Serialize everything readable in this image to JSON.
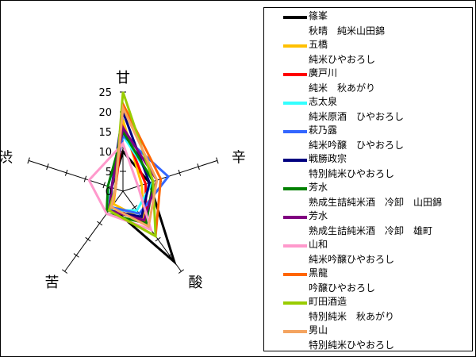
{
  "chart_data": {
    "type": "radar",
    "axes": [
      "甘",
      "辛",
      "酸",
      "苦",
      "渋"
    ],
    "tick_labels": [
      "0",
      "5",
      "10",
      "15",
      "20",
      "25"
    ],
    "rmax": 25,
    "grid": false,
    "legend_position": "right",
    "series": [
      {
        "name": "篠峯",
        "subtitle": "秋晴　純米山田錦",
        "color": "#000000",
        "values": [
          10,
          7,
          22,
          5,
          3
        ]
      },
      {
        "name": "五橋",
        "subtitle": "純米ひやおろし",
        "color": "#FFC000",
        "values": [
          18,
          5,
          9,
          4,
          2
        ]
      },
      {
        "name": "廣戸川",
        "subtitle": "純米　秋あがり",
        "color": "#FF0000",
        "values": [
          16,
          6,
          10,
          5,
          2
        ]
      },
      {
        "name": "志太泉",
        "subtitle": "純米原酒　ひやおろし",
        "color": "#33FFFF",
        "values": [
          14,
          8,
          6,
          6,
          4
        ]
      },
      {
        "name": "萩乃露",
        "subtitle": "純米吟醸　ひやおろし",
        "color": "#3366FF",
        "values": [
          14,
          12,
          7,
          5,
          3
        ]
      },
      {
        "name": "戦勝政宗",
        "subtitle": "特別純米ひやおろし",
        "color": "#000080",
        "values": [
          20,
          7,
          8,
          6,
          3
        ]
      },
      {
        "name": "芳水",
        "subtitle": "熟成生詰純米酒　冷卸　山田錦",
        "color": "#008000",
        "values": [
          15,
          8,
          10,
          7,
          4
        ]
      },
      {
        "name": "芳水",
        "subtitle": "熟成生詰純米酒　冷卸　雄町",
        "color": "#800080",
        "values": [
          16,
          9,
          9,
          6,
          3
        ]
      },
      {
        "name": "山和",
        "subtitle": "純米吟醸ひやおろし",
        "color": "#FF99CC",
        "values": [
          12,
          4,
          12,
          7,
          9
        ]
      },
      {
        "name": "黒龍",
        "subtitle": "吟醸ひやおろし",
        "color": "#FF6600",
        "values": [
          22,
          10,
          14,
          6,
          2
        ]
      },
      {
        "name": "町田酒造",
        "subtitle": "特別純米　秋あがり",
        "color": "#99CC00",
        "values": [
          25,
          8,
          14,
          6,
          2
        ]
      },
      {
        "name": "男山",
        "subtitle": "特別純米ひやおろし",
        "color": "#F4A460",
        "values": [
          21,
          9,
          11,
          5,
          2
        ]
      }
    ]
  }
}
